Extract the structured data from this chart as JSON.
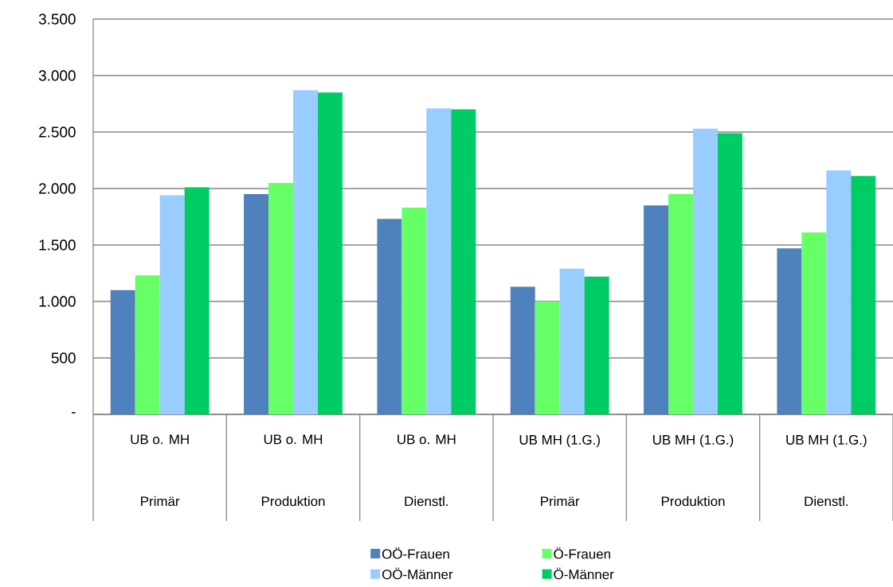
{
  "chart_data": {
    "type": "bar",
    "categories": [
      "UB o. MH",
      "UB o. MH",
      "UB o. MH",
      "UB MH (1.G.)",
      "UB MH (1.G.)",
      "UB MH (1.G.)"
    ],
    "annotations": [
      "Primär",
      "Produktion",
      "Dienstl.",
      "Primär",
      "Produktion",
      "Dienstl."
    ],
    "series": [
      {
        "name": "OÖ-Frauen",
        "color": "#4f81bd",
        "values": [
          1100,
          1950,
          1730,
          1130,
          1850,
          1470
        ]
      },
      {
        "name": "Ö-Frauen",
        "color": "#66ff66",
        "values": [
          1230,
          2050,
          1830,
          1000,
          1950,
          1610
        ]
      },
      {
        "name": "OÖ-Männer",
        "color": "#99ccff",
        "values": [
          1940,
          2870,
          2710,
          1290,
          2530,
          2160
        ]
      },
      {
        "name": "Ö-Männer",
        "color": "#00cc66",
        "values": [
          2010,
          2850,
          2700,
          1220,
          2490,
          2110
        ]
      }
    ],
    "ylim": [
      0,
      3500
    ],
    "yticks": [
      {
        "value": 0,
        "label": "-"
      },
      {
        "value": 500,
        "label": "500"
      },
      {
        "value": 1000,
        "label": "1.000"
      },
      {
        "value": 1500,
        "label": "1.500"
      },
      {
        "value": 2000,
        "label": "2.000"
      },
      {
        "value": 2500,
        "label": "2.500"
      },
      {
        "value": 3000,
        "label": "3.000"
      },
      {
        "value": 3500,
        "label": "3.500"
      }
    ],
    "grid": "y",
    "legend": "bottom"
  }
}
